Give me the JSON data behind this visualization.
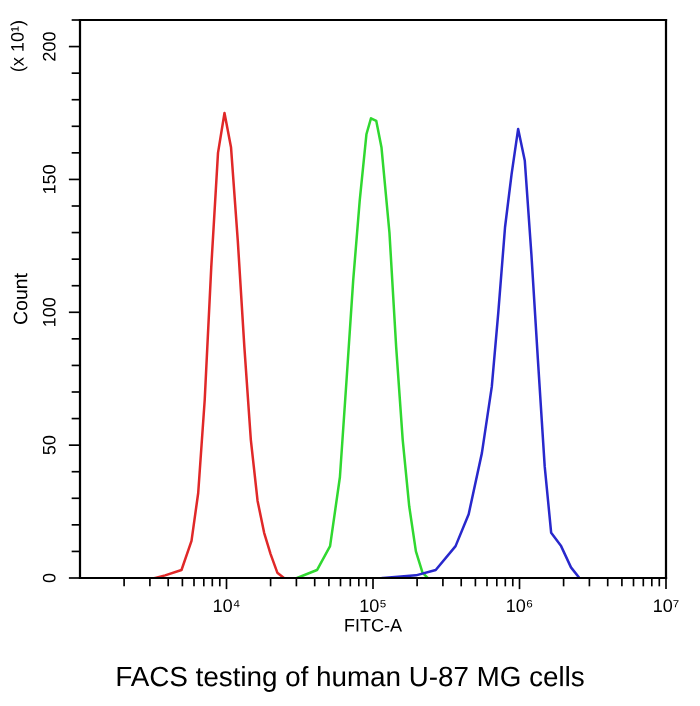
{
  "chart_data": {
    "type": "line",
    "title": "FACS testing of human U-87 MG cells",
    "xlabel": "FITC-A",
    "ylabel": "Count",
    "annotations": [
      "(x 10¹)"
    ],
    "log": "x",
    "grid": false,
    "legend": false,
    "marker": "none",
    "line_style": "solid",
    "xlim": [
      1000,
      10000000
    ],
    "ylim": [
      0,
      210
    ],
    "xticks": [
      {
        "value": 10000,
        "label": "10⁴"
      },
      {
        "value": 100000,
        "label": "10⁵"
      },
      {
        "value": 1000000,
        "label": "10⁶"
      },
      {
        "value": 10000000,
        "label": "10⁷"
      }
    ],
    "yticks": [
      0,
      50,
      100,
      150,
      200
    ],
    "series": [
      {
        "color": "#e02828",
        "x": [
          3270,
          3810,
          4930,
          5770,
          6410,
          7100,
          7870,
          8750,
          9690,
          10740,
          11940,
          13240,
          14660,
          16300,
          18070,
          20000,
          22230,
          24660
        ],
        "values": [
          0,
          1,
          3,
          14,
          32,
          67,
          117,
          160,
          175,
          162,
          127,
          87,
          52,
          29,
          17,
          9,
          2,
          0
        ]
      },
      {
        "color": "#30d830",
        "x": [
          30340,
          41470,
          50930,
          59460,
          66070,
          73250,
          81150,
          90180,
          96850,
          105300,
          114300,
          129500,
          143900,
          159500,
          176700,
          196300,
          217700,
          236600
        ],
        "values": [
          0,
          3,
          12,
          38,
          75,
          112,
          142,
          167,
          173,
          172,
          162,
          130,
          87,
          52,
          27,
          10,
          2,
          0
        ]
      },
      {
        "color": "#2828cc",
        "x": [
          116900,
          196300,
          268000,
          366100,
          449800,
          553600,
          647000,
          716700,
          796600,
          883200,
          979000,
          1087000,
          1205000,
          1336000,
          1486000,
          1645000,
          1923000,
          2246000,
          2564000
        ],
        "values": [
          0,
          1,
          3,
          12,
          24,
          47,
          72,
          100,
          132,
          152,
          169,
          157,
          122,
          82,
          42,
          17,
          12,
          4,
          0
        ]
      }
    ]
  }
}
